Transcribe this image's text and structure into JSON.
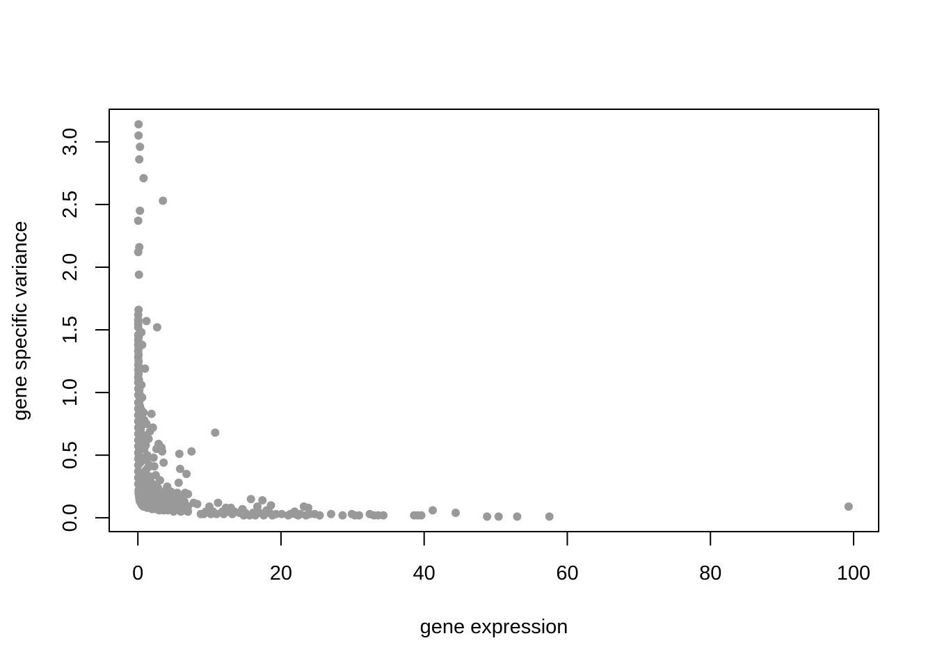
{
  "chart_data": {
    "type": "scatter",
    "title": "",
    "xlabel": "gene expression",
    "ylabel": "gene specific variance",
    "xlim": [
      -4,
      103.5
    ],
    "ylim": [
      -0.11,
      3.26
    ],
    "x_ticks": [
      0,
      20,
      40,
      60,
      80,
      100
    ],
    "x_tick_labels": [
      "0",
      "20",
      "40",
      "60",
      "80",
      "100"
    ],
    "y_ticks": [
      0.0,
      0.5,
      1.0,
      1.5,
      2.0,
      2.5,
      3.0
    ],
    "y_tick_labels": [
      "0.0",
      "0.5",
      "1.0",
      "1.5",
      "2.0",
      "2.5",
      "3.0"
    ],
    "grid": false,
    "legend": "none",
    "point_color": "#999999",
    "series": [
      {
        "points": [
          [
            0.1,
            3.14
          ],
          [
            0.1,
            3.05
          ],
          [
            0.3,
            2.96
          ],
          [
            0.2,
            2.86
          ],
          [
            0.8,
            2.71
          ],
          [
            3.5,
            2.53
          ],
          [
            0.3,
            2.45
          ],
          [
            0.05,
            2.37
          ],
          [
            0.2,
            2.16
          ],
          [
            0.05,
            2.12
          ],
          [
            0.15,
            1.94
          ],
          [
            0.1,
            1.66
          ],
          [
            0.05,
            1.62
          ],
          [
            0.05,
            1.58
          ],
          [
            0.05,
            1.55
          ],
          [
            0.05,
            1.52
          ],
          [
            1.2,
            1.57
          ],
          [
            2.7,
            1.52
          ],
          [
            0.5,
            1.48
          ],
          [
            0.6,
            1.38
          ],
          [
            0.1,
            1.44
          ],
          [
            0.1,
            1.4
          ],
          [
            0.1,
            1.35
          ],
          [
            0.1,
            1.3
          ],
          [
            0.1,
            1.25
          ],
          [
            0.2,
            1.2
          ],
          [
            1.0,
            1.19
          ],
          [
            0.1,
            1.15
          ],
          [
            0.15,
            1.1
          ],
          [
            0.5,
            1.06
          ],
          [
            0.2,
            1.02
          ],
          [
            0.3,
            0.98
          ],
          [
            0.6,
            0.96
          ],
          [
            0.2,
            0.93
          ],
          [
            0.3,
            0.89
          ],
          [
            0.5,
            0.86
          ],
          [
            0.8,
            0.84
          ],
          [
            1.9,
            0.83
          ],
          [
            0.3,
            0.8
          ],
          [
            0.9,
            0.78
          ],
          [
            1.2,
            0.75
          ],
          [
            2.1,
            0.72
          ],
          [
            1.7,
            0.69
          ],
          [
            0.4,
            0.71
          ],
          [
            10.8,
            0.68
          ],
          [
            0.8,
            0.66
          ],
          [
            1.5,
            0.63
          ],
          [
            0.5,
            0.61
          ],
          [
            2.9,
            0.59
          ],
          [
            1.1,
            0.58
          ],
          [
            3.3,
            0.56
          ],
          [
            2.6,
            0.55
          ],
          [
            7.5,
            0.53
          ],
          [
            3.4,
            0.53
          ],
          [
            5.8,
            0.51
          ],
          [
            1.3,
            0.5
          ],
          [
            2.2,
            0.48
          ],
          [
            3.6,
            0.44
          ],
          [
            1.6,
            0.42
          ],
          [
            2.3,
            0.41
          ],
          [
            5.9,
            0.39
          ],
          [
            1.1,
            0.38
          ],
          [
            6.8,
            0.35
          ],
          [
            2.5,
            0.34
          ],
          [
            0.9,
            0.32
          ],
          [
            1.7,
            0.3
          ],
          [
            3.1,
            0.3
          ],
          [
            5.7,
            0.28
          ],
          [
            2.0,
            0.27
          ],
          [
            4.1,
            0.25
          ],
          [
            2.8,
            0.24
          ],
          [
            3.9,
            0.22
          ],
          [
            6.6,
            0.2
          ],
          [
            5.5,
            0.2
          ],
          [
            4.6,
            0.21
          ],
          [
            3.0,
            0.19
          ],
          [
            7.0,
            0.19
          ],
          [
            1.8,
            0.18
          ],
          [
            4.3,
            0.17
          ],
          [
            6.1,
            0.16
          ],
          [
            2.4,
            0.15
          ],
          [
            5.0,
            0.15
          ],
          [
            3.7,
            0.14
          ],
          [
            6.5,
            0.13
          ],
          [
            7.8,
            0.12
          ],
          [
            8.3,
            0.11
          ],
          [
            11.2,
            0.12
          ],
          [
            4.8,
            0.12
          ],
          [
            2.9,
            0.11
          ],
          [
            3.8,
            0.1
          ],
          [
            5.2,
            0.1
          ],
          [
            6.2,
            0.1
          ],
          [
            7.0,
            0.09
          ],
          [
            4.5,
            0.09
          ],
          [
            10.0,
            0.09
          ],
          [
            12.3,
            0.08
          ],
          [
            13.0,
            0.08
          ],
          [
            15.8,
            0.15
          ],
          [
            17.4,
            0.14
          ],
          [
            18.6,
            0.1
          ],
          [
            16.7,
            0.09
          ],
          [
            23.2,
            0.09
          ],
          [
            23.8,
            0.08
          ],
          [
            14.6,
            0.07
          ],
          [
            18.0,
            0.06
          ],
          [
            21.9,
            0.05
          ],
          [
            9.5,
            0.05
          ],
          [
            10.5,
            0.05
          ],
          [
            11.8,
            0.05
          ],
          [
            12.7,
            0.05
          ],
          [
            13.5,
            0.05
          ],
          [
            14.2,
            0.04
          ],
          [
            15.0,
            0.04
          ],
          [
            16.1,
            0.04
          ],
          [
            17.0,
            0.04
          ],
          [
            18.4,
            0.04
          ],
          [
            19.3,
            0.03
          ],
          [
            20.1,
            0.03
          ],
          [
            21.3,
            0.03
          ],
          [
            22.0,
            0.03
          ],
          [
            22.7,
            0.03
          ],
          [
            24.0,
            0.03
          ],
          [
            24.7,
            0.03
          ],
          [
            25.4,
            0.02
          ],
          [
            27.0,
            0.03
          ],
          [
            28.6,
            0.02
          ],
          [
            29.9,
            0.03
          ],
          [
            30.3,
            0.02
          ],
          [
            30.9,
            0.02
          ],
          [
            32.4,
            0.03
          ],
          [
            33.0,
            0.02
          ],
          [
            33.6,
            0.02
          ],
          [
            34.3,
            0.02
          ],
          [
            38.6,
            0.02
          ],
          [
            39.1,
            0.02
          ],
          [
            39.6,
            0.02
          ],
          [
            41.2,
            0.06
          ],
          [
            44.4,
            0.04
          ],
          [
            48.8,
            0.01
          ],
          [
            50.4,
            0.01
          ],
          [
            53.0,
            0.01
          ],
          [
            57.5,
            0.01
          ],
          [
            99.3,
            0.09
          ],
          [
            8.8,
            0.03
          ],
          [
            9.2,
            0.03
          ],
          [
            10.2,
            0.03
          ],
          [
            11.0,
            0.03
          ],
          [
            12.0,
            0.03
          ],
          [
            13.2,
            0.03
          ],
          [
            14.8,
            0.02
          ],
          [
            15.6,
            0.02
          ],
          [
            16.4,
            0.02
          ],
          [
            17.6,
            0.02
          ],
          [
            18.8,
            0.02
          ],
          [
            21.0,
            0.02
          ],
          [
            22.4,
            0.02
          ],
          [
            23.5,
            0.02
          ],
          [
            0.05,
            1.46
          ],
          [
            0.05,
            1.42
          ],
          [
            0.05,
            1.38
          ],
          [
            0.05,
            1.33
          ],
          [
            0.05,
            1.28
          ],
          [
            0.05,
            1.22
          ],
          [
            0.05,
            1.18
          ],
          [
            0.05,
            1.12
          ],
          [
            0.05,
            1.08
          ],
          [
            0.05,
            1.03
          ],
          [
            0.05,
            0.98
          ],
          [
            0.05,
            0.92
          ],
          [
            0.05,
            0.87
          ],
          [
            0.05,
            0.82
          ],
          [
            0.05,
            0.77
          ],
          [
            0.05,
            0.72
          ],
          [
            0.05,
            0.67
          ],
          [
            0.05,
            0.62
          ],
          [
            0.05,
            0.57
          ],
          [
            0.05,
            0.52
          ],
          [
            0.05,
            0.47
          ],
          [
            0.05,
            0.42
          ],
          [
            0.05,
            0.37
          ],
          [
            0.05,
            0.32
          ],
          [
            0.05,
            0.27
          ],
          [
            0.1,
            0.22
          ],
          [
            0.1,
            0.2
          ],
          [
            0.15,
            0.18
          ],
          [
            0.2,
            0.16
          ],
          [
            0.25,
            0.14
          ],
          [
            0.3,
            0.13
          ],
          [
            0.4,
            0.12
          ],
          [
            0.5,
            0.11
          ],
          [
            0.6,
            0.1
          ],
          [
            0.8,
            0.09
          ],
          [
            1.0,
            0.09
          ],
          [
            1.3,
            0.08
          ],
          [
            1.6,
            0.08
          ],
          [
            2.0,
            0.07
          ],
          [
            2.5,
            0.07
          ],
          [
            3.0,
            0.06
          ],
          [
            3.6,
            0.06
          ],
          [
            4.2,
            0.06
          ],
          [
            5.0,
            0.05
          ],
          [
            6.0,
            0.05
          ],
          [
            7.0,
            0.05
          ],
          [
            0.2,
            0.9
          ],
          [
            0.4,
            0.75
          ],
          [
            0.3,
            0.66
          ],
          [
            0.7,
            0.62
          ],
          [
            0.9,
            0.55
          ],
          [
            1.2,
            0.46
          ],
          [
            0.6,
            0.48
          ],
          [
            1.4,
            0.4
          ],
          [
            0.8,
            0.36
          ],
          [
            1.7,
            0.33
          ],
          [
            1.0,
            0.29
          ],
          [
            2.1,
            0.27
          ],
          [
            1.5,
            0.24
          ],
          [
            2.6,
            0.22
          ],
          [
            1.8,
            0.2
          ],
          [
            3.2,
            0.18
          ],
          [
            2.2,
            0.17
          ],
          [
            4.0,
            0.15
          ],
          [
            2.7,
            0.13
          ],
          [
            5.4,
            0.13
          ],
          [
            3.4,
            0.12
          ],
          [
            4.4,
            0.11
          ],
          [
            0.4,
            0.58
          ],
          [
            0.25,
            0.54
          ],
          [
            0.35,
            0.44
          ],
          [
            0.15,
            0.5
          ],
          [
            0.45,
            0.35
          ],
          [
            0.3,
            0.28
          ],
          [
            0.55,
            0.26
          ],
          [
            0.7,
            0.22
          ],
          [
            0.9,
            0.19
          ],
          [
            1.1,
            0.16
          ],
          [
            1.4,
            0.14
          ],
          [
            1.9,
            0.12
          ],
          [
            2.3,
            0.1
          ],
          [
            2.8,
            0.09
          ],
          [
            3.3,
            0.08
          ],
          [
            4.0,
            0.08
          ],
          [
            4.7,
            0.07
          ],
          [
            5.5,
            0.07
          ],
          [
            6.4,
            0.06
          ]
        ]
      }
    ]
  }
}
